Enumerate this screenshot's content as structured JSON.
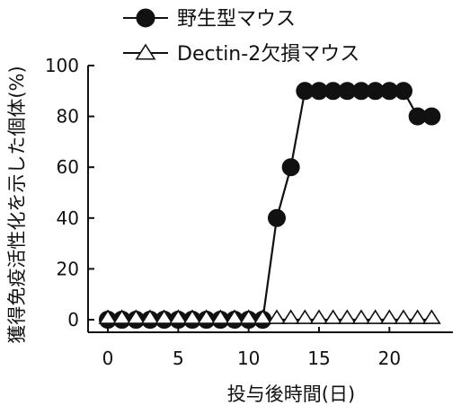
{
  "chart_data": {
    "type": "line",
    "ylabel": "獲得免疫活性化を示した個体(%)",
    "xlabel": "投与後時間(日)",
    "xlim": [
      0,
      24
    ],
    "ylim": [
      0,
      100
    ],
    "x_ticks": [
      0,
      5,
      10,
      15,
      20
    ],
    "y_ticks": [
      0,
      20,
      40,
      60,
      80,
      100
    ],
    "grid": false,
    "legend_position": "top",
    "series": [
      {
        "name": "野生型マウス",
        "marker": "filled-circle",
        "x": [
          0,
          1,
          2,
          3,
          4,
          5,
          6,
          7,
          8,
          9,
          10,
          11,
          12,
          13,
          14,
          15,
          16,
          17,
          18,
          19,
          20,
          21,
          22,
          23
        ],
        "y": [
          0,
          0,
          0,
          0,
          0,
          0,
          0,
          0,
          0,
          0,
          0,
          0,
          40,
          60,
          90,
          90,
          90,
          90,
          90,
          90,
          90,
          90,
          80,
          80
        ]
      },
      {
        "name": "Dectin-2欠損マウス",
        "marker": "open-triangle",
        "x": [
          0,
          1,
          2,
          3,
          4,
          5,
          6,
          7,
          8,
          9,
          10,
          11,
          12,
          13,
          14,
          15,
          16,
          17,
          18,
          19,
          20,
          21,
          22,
          23
        ],
        "y": [
          0,
          0,
          0,
          0,
          0,
          0,
          0,
          0,
          0,
          0,
          0,
          0,
          0,
          0,
          0,
          0,
          0,
          0,
          0,
          0,
          0,
          0,
          0,
          0
        ]
      }
    ],
    "colors": {
      "line": "#111111",
      "filled_marker": "#111111",
      "open_marker_fill": "#ffffff"
    }
  }
}
